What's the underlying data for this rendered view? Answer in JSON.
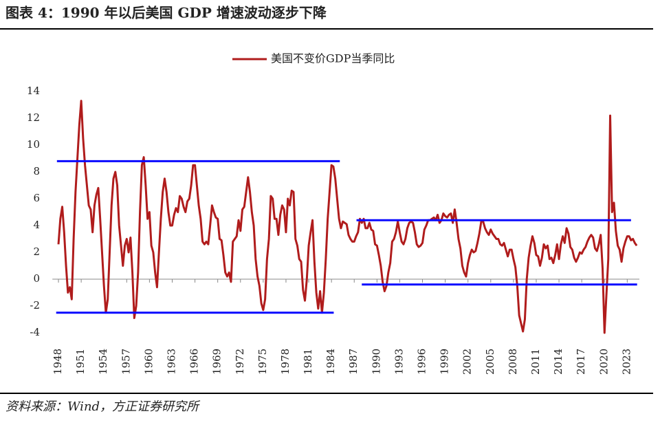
{
  "chart_data": {
    "type": "line",
    "title": "图表 4：1990 年以后美国 GDP 增速波动逐步下降",
    "source": "资料来源：Wind，方正证券研究所",
    "legend": "top",
    "xlim": [
      1947.2,
      2024.6
    ],
    "ylim": [
      -4,
      14
    ],
    "yticks": [
      -4,
      -2,
      0,
      2,
      4,
      6,
      8,
      10,
      12,
      14
    ],
    "xticks": [
      1948,
      1951,
      1954,
      1957,
      1960,
      1963,
      1966,
      1969,
      1972,
      1975,
      1978,
      1981,
      1984,
      1987,
      1990,
      1993,
      1996,
      1999,
      2002,
      2005,
      2008,
      2011,
      2014,
      2017,
      2020,
      2023
    ],
    "reference_lines": [
      {
        "y": 8.8,
        "x": [
          1947.8,
          1985.1
        ],
        "color": "#0a0aff"
      },
      {
        "y": -2.5,
        "x": [
          1947.7,
          1984.3
        ],
        "color": "#0a0aff"
      },
      {
        "y": 4.4,
        "x": [
          1987.3,
          2023.5
        ],
        "color": "#0a0aff"
      },
      {
        "y": -0.4,
        "x": [
          1988.0,
          2024.3
        ],
        "color": "#0a0aff"
      }
    ],
    "x": [
      1948,
      1948.25,
      1948.5,
      1948.75,
      1949,
      1949.25,
      1949.5,
      1949.75,
      1950,
      1950.25,
      1950.5,
      1950.75,
      1951,
      1951.25,
      1951.5,
      1951.75,
      1952,
      1952.25,
      1952.5,
      1952.75,
      1953,
      1953.25,
      1953.5,
      1953.75,
      1954,
      1954.25,
      1954.5,
      1954.75,
      1955,
      1955.25,
      1955.5,
      1955.75,
      1956,
      1956.25,
      1956.5,
      1956.75,
      1957,
      1957.25,
      1957.5,
      1957.75,
      1958,
      1958.25,
      1958.5,
      1958.75,
      1959,
      1959.25,
      1959.5,
      1959.75,
      1960,
      1960.25,
      1960.5,
      1960.75,
      1961,
      1961.25,
      1961.5,
      1961.75,
      1962,
      1962.25,
      1962.5,
      1962.75,
      1963,
      1963.25,
      1963.5,
      1963.75,
      1964,
      1964.25,
      1964.5,
      1964.75,
      1965,
      1965.25,
      1965.5,
      1965.75,
      1966,
      1966.25,
      1966.5,
      1966.75,
      1967,
      1967.25,
      1967.5,
      1967.75,
      1968,
      1968.25,
      1968.5,
      1968.75,
      1969,
      1969.25,
      1969.5,
      1969.75,
      1970,
      1970.25,
      1970.5,
      1970.75,
      1971,
      1971.25,
      1971.5,
      1971.75,
      1972,
      1972.25,
      1972.5,
      1972.75,
      1973,
      1973.25,
      1973.5,
      1973.75,
      1974,
      1974.25,
      1974.5,
      1974.75,
      1975,
      1975.25,
      1975.5,
      1975.75,
      1976,
      1976.25,
      1976.5,
      1976.75,
      1977,
      1977.25,
      1977.5,
      1977.75,
      1978,
      1978.25,
      1978.5,
      1978.75,
      1979,
      1979.25,
      1979.5,
      1979.75,
      1980,
      1980.25,
      1980.5,
      1980.75,
      1981,
      1981.25,
      1981.5,
      1981.75,
      1982,
      1982.25,
      1982.5,
      1982.75,
      1983,
      1983.25,
      1983.5,
      1983.75,
      1984,
      1984.25,
      1984.5,
      1984.75,
      1985,
      1985.25,
      1985.5,
      1985.75,
      1986,
      1986.25,
      1986.5,
      1986.75,
      1987,
      1987.25,
      1987.5,
      1987.75,
      1988,
      1988.25,
      1988.5,
      1988.75,
      1989,
      1989.25,
      1989.5,
      1989.75,
      1990,
      1990.25,
      1990.5,
      1990.75,
      1991,
      1991.25,
      1991.5,
      1991.75,
      1992,
      1992.25,
      1992.5,
      1992.75,
      1993,
      1993.25,
      1993.5,
      1993.75,
      1994,
      1994.25,
      1994.5,
      1994.75,
      1995,
      1995.25,
      1995.5,
      1995.75,
      1996,
      1996.25,
      1996.5,
      1996.75,
      1997,
      1997.25,
      1997.5,
      1997.75,
      1998,
      1998.25,
      1998.5,
      1998.75,
      1999,
      1999.25,
      1999.5,
      1999.75,
      2000,
      2000.25,
      2000.5,
      2000.75,
      2001,
      2001.25,
      2001.5,
      2001.75,
      2002,
      2002.25,
      2002.5,
      2002.75,
      2003,
      2003.25,
      2003.5,
      2003.75,
      2004,
      2004.25,
      2004.5,
      2004.75,
      2005,
      2005.25,
      2005.5,
      2005.75,
      2006,
      2006.25,
      2006.5,
      2006.75,
      2007,
      2007.25,
      2007.5,
      2007.75,
      2008,
      2008.25,
      2008.5,
      2008.75,
      2009,
      2009.25,
      2009.5,
      2009.75,
      2010,
      2010.25,
      2010.5,
      2010.75,
      2011,
      2011.25,
      2011.5,
      2011.75,
      2012,
      2012.25,
      2012.5,
      2012.75,
      2013,
      2013.25,
      2013.5,
      2013.75,
      2014,
      2014.25,
      2014.5,
      2014.75,
      2015,
      2015.25,
      2015.5,
      2015.75,
      2016,
      2016.25,
      2016.5,
      2016.75,
      2017,
      2017.25,
      2017.5,
      2017.75,
      2018,
      2018.25,
      2018.5,
      2018.75,
      2019,
      2019.25,
      2019.5,
      2019.75,
      2020,
      2020.25,
      2020.5,
      2020.75,
      2021,
      2021.25,
      2021.5,
      2021.75,
      2022,
      2022.25,
      2022.5,
      2022.75,
      2023,
      2023.25,
      2023.5,
      2023.75,
      2024,
      2024.25
    ],
    "series": [
      {
        "name": "美国不变价GDP当季同比",
        "color": "#b01c1c",
        "values": [
          2.6,
          4.5,
          5.4,
          3.5,
          1.0,
          -1.0,
          -0.6,
          -1.5,
          3.0,
          6.5,
          9.0,
          11.5,
          13.3,
          10.5,
          8.5,
          7.0,
          5.5,
          5.2,
          3.5,
          5.5,
          6.3,
          6.8,
          4.5,
          2.0,
          -0.5,
          -2.5,
          -1.5,
          2.0,
          5.5,
          7.5,
          8.0,
          7.0,
          4.0,
          2.5,
          1.0,
          2.5,
          3.0,
          2.0,
          3.1,
          0.5,
          -2.9,
          -2.0,
          0.5,
          5.0,
          8.5,
          9.1,
          7.0,
          4.5,
          5.0,
          2.5,
          2.0,
          0.5,
          -0.6,
          2.0,
          4.5,
          6.5,
          7.5,
          6.5,
          5.0,
          4.0,
          4.0,
          4.8,
          5.3,
          5.0,
          6.2,
          6.0,
          5.4,
          5.0,
          5.8,
          6.0,
          7.0,
          8.5,
          8.5,
          7.0,
          5.5,
          4.5,
          2.8,
          2.6,
          2.8,
          2.6,
          4.0,
          5.5,
          5.0,
          4.6,
          4.5,
          3.0,
          2.9,
          1.8,
          0.5,
          0.2,
          0.5,
          -0.2,
          2.8,
          3.0,
          3.2,
          4.4,
          3.6,
          5.2,
          5.4,
          6.5,
          7.6,
          6.5,
          5.0,
          4.0,
          1.5,
          0.2,
          -0.5,
          -1.8,
          -2.3,
          -1.5,
          1.5,
          3.0,
          6.2,
          6.0,
          4.5,
          4.5,
          3.3,
          4.8,
          5.5,
          5.2,
          3.5,
          6.0,
          5.5,
          6.6,
          6.5,
          3.0,
          2.5,
          1.5,
          1.3,
          -0.8,
          -1.6,
          0.0,
          2.5,
          3.5,
          4.4,
          1.3,
          -1.0,
          -2.2,
          -0.9,
          -2.5,
          -1.0,
          1.5,
          4.5,
          6.5,
          8.5,
          8.4,
          7.5,
          6.0,
          4.5,
          3.8,
          4.3,
          4.2,
          4.1,
          3.3,
          3.0,
          2.8,
          2.8,
          3.2,
          3.5,
          4.5,
          4.2,
          4.5,
          3.8,
          3.8,
          4.2,
          3.7,
          3.6,
          2.6,
          2.5,
          1.8,
          1.0,
          -0.2,
          -0.9,
          -0.5,
          0.5,
          1.2,
          2.8,
          3.0,
          3.5,
          4.3,
          3.5,
          2.8,
          2.6,
          3.0,
          3.8,
          4.2,
          4.3,
          4.2,
          3.5,
          2.6,
          2.4,
          2.5,
          2.7,
          3.7,
          4.0,
          4.4,
          4.4,
          4.5,
          4.6,
          4.4,
          4.8,
          4.2,
          4.4,
          4.9,
          4.7,
          4.6,
          4.8,
          4.9,
          4.2,
          5.2,
          4.2,
          3.0,
          2.3,
          1.0,
          0.5,
          0.2,
          1.2,
          1.8,
          2.2,
          2.0,
          2.1,
          2.7,
          3.4,
          4.3,
          4.3,
          3.8,
          3.5,
          3.3,
          3.7,
          3.4,
          3.2,
          3.0,
          3.0,
          2.6,
          2.5,
          2.7,
          2.2,
          1.7,
          2.2,
          2.2,
          1.5,
          0.9,
          -0.5,
          -2.7,
          -3.3,
          -3.9,
          -3.0,
          0.0,
          1.6,
          2.5,
          3.2,
          2.7,
          1.8,
          1.7,
          1.0,
          1.6,
          2.6,
          2.3,
          2.5,
          1.5,
          1.6,
          1.2,
          1.8,
          2.6,
          1.5,
          2.6,
          3.2,
          2.7,
          3.8,
          3.4,
          2.4,
          2.2,
          1.6,
          1.3,
          1.6,
          2.0,
          1.9,
          2.2,
          2.4,
          2.8,
          3.1,
          3.3,
          3.1,
          2.3,
          2.1,
          2.6,
          3.3,
          0.8,
          -4.0,
          -1.2,
          1.5,
          12.2,
          5.0,
          5.7,
          3.6,
          2.5,
          2.2,
          1.3,
          2.3,
          2.8,
          3.2,
          3.2,
          2.9,
          3.0,
          2.7,
          2.5
        ]
      }
    ]
  }
}
